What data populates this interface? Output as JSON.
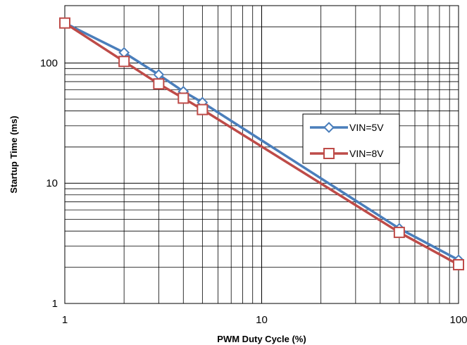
{
  "chart_data": {
    "type": "line",
    "x_scale": "log",
    "y_scale": "log",
    "xlim": [
      1,
      100
    ],
    "ylim": [
      1,
      300
    ],
    "xlabel": "PWM Duty Cycle  (%)",
    "ylabel": "Startup Time  (ms)",
    "x_ticks": [
      1,
      10,
      100
    ],
    "x_tick_labels": [
      "1",
      "10",
      "100"
    ],
    "y_ticks": [
      1,
      10,
      100
    ],
    "y_tick_labels": [
      "1",
      "10",
      "100"
    ],
    "grid": true,
    "legend_position": "right-middle",
    "series": [
      {
        "name": "VIN=5V",
        "color": "#4a7ebb",
        "marker": "diamond",
        "x": [
          1,
          2,
          3,
          4,
          5,
          50,
          100
        ],
        "y": [
          215,
          122,
          80,
          58,
          47,
          4.2,
          2.3
        ]
      },
      {
        "name": "VIN=8V",
        "color": "#be4b48",
        "marker": "square",
        "x": [
          1,
          2,
          3,
          4,
          5,
          50,
          100
        ],
        "y": [
          215,
          103,
          67,
          51,
          41,
          3.9,
          2.1
        ]
      }
    ]
  }
}
